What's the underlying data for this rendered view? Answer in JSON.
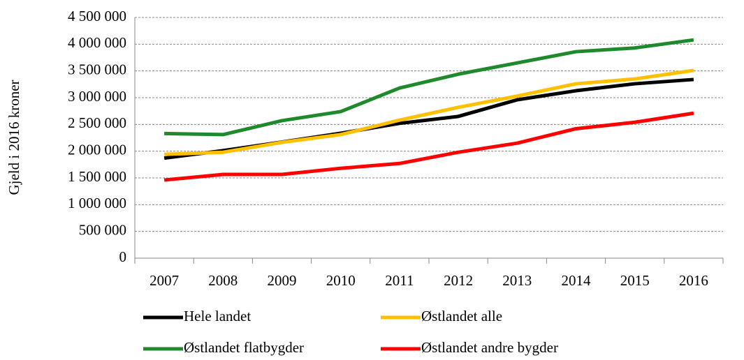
{
  "chart_data": {
    "type": "line",
    "ylabel": "Gjeld i 2016 kroner",
    "categories": [
      "2007",
      "2008",
      "2009",
      "2010",
      "2011",
      "2012",
      "2013",
      "2014",
      "2015",
      "2016"
    ],
    "series": [
      {
        "name": "Hele landet",
        "color": "#000000",
        "values": [
          1870000,
          2010000,
          2170000,
          2335000,
          2520000,
          2650000,
          2960000,
          3130000,
          3260000,
          3340000
        ]
      },
      {
        "name": "Østlandet alle",
        "color": "#ffc000",
        "values": [
          1940000,
          1980000,
          2165000,
          2310000,
          2580000,
          2820000,
          3030000,
          3260000,
          3350000,
          3510000
        ]
      },
      {
        "name": "Østlandet flatbygder",
        "color": "#1e8a2c",
        "values": [
          2330000,
          2310000,
          2570000,
          2740000,
          3180000,
          3440000,
          3650000,
          3860000,
          3930000,
          4080000
        ]
      },
      {
        "name": "Østlandet andre bygder",
        "color": "#ff0000",
        "values": [
          1460000,
          1565000,
          1565000,
          1680000,
          1770000,
          1980000,
          2150000,
          2420000,
          2540000,
          2710000
        ]
      }
    ],
    "ylim": [
      0,
      4500000
    ],
    "yticks": [
      0,
      {
        "value": 500000,
        "label": "500 000"
      },
      {
        "value": 1000000,
        "label": "1 000 000"
      },
      {
        "value": 1500000,
        "label": "1 500 000"
      },
      {
        "value": 2000000,
        "label": "2 000 000"
      },
      {
        "value": 2500000,
        "label": "2 500 000"
      },
      {
        "value": 3000000,
        "label": "3 000 000"
      },
      {
        "value": 3500000,
        "label": "3 500 000"
      },
      {
        "value": 4000000,
        "label": "4 000 000"
      },
      {
        "value": 4500000,
        "label": "4 500 000"
      }
    ],
    "grid": true,
    "legend": "bottom"
  }
}
